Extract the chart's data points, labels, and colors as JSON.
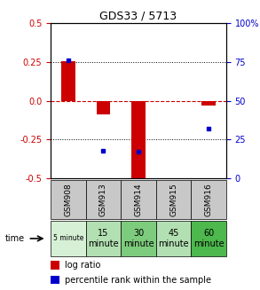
{
  "title": "GDS33 / 5713",
  "samples": [
    "GSM908",
    "GSM913",
    "GSM914",
    "GSM915",
    "GSM916"
  ],
  "time_labels": [
    "5 minute",
    "15\nminute",
    "30\nminute",
    "45\nminute",
    "60\nminute"
  ],
  "time_bg_colors": [
    "#d6f0d6",
    "#b2e0b2",
    "#7dcc7d",
    "#b2e0b2",
    "#4db84d"
  ],
  "log_ratios": [
    0.255,
    -0.085,
    -0.52,
    0.0,
    -0.028
  ],
  "percentile_ranks": [
    76,
    18,
    17,
    null,
    32
  ],
  "ylim_left": [
    -0.5,
    0.5
  ],
  "ylim_right": [
    0,
    100
  ],
  "left_yticks": [
    -0.5,
    -0.25,
    0.0,
    0.25,
    0.5
  ],
  "right_yticks": [
    0,
    25,
    50,
    75,
    100
  ],
  "left_tick_color": "#cc0000",
  "right_tick_color": "#0000cc",
  "bar_color": "#cc0000",
  "dot_color": "#0000cc",
  "zero_line_color": "#cc0000",
  "header_bg_color": "#c8c8c8",
  "legend_bar_label": "log ratio",
  "legend_dot_label": "percentile rank within the sample"
}
